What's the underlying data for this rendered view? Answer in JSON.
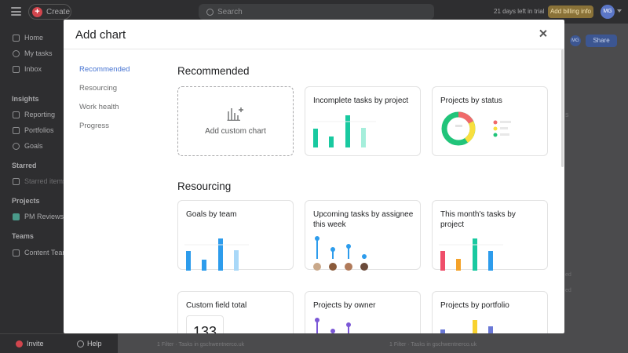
{
  "app": {
    "create_label": "Create",
    "search_placeholder": "Search",
    "trial_text": "21 days left in trial",
    "billing_label": "Add billing info",
    "user_initials": "MG",
    "share_label": "Share"
  },
  "sidebar": {
    "items": [
      {
        "label": "Home",
        "icon": "home-icon"
      },
      {
        "label": "My tasks",
        "icon": "check-circle-icon"
      },
      {
        "label": "Inbox",
        "icon": "bell-icon"
      }
    ],
    "insights_heading": "Insights",
    "insights_items": [
      {
        "label": "Reporting",
        "icon": "trend-icon"
      },
      {
        "label": "Portfolios",
        "icon": "folder-icon"
      },
      {
        "label": "Goals",
        "icon": "person-icon"
      }
    ],
    "starred_heading": "Starred",
    "starred_items": [
      {
        "label": "Starred items",
        "icon": "star-icon"
      }
    ],
    "projects_heading": "Projects",
    "projects_items": [
      {
        "label": "PM Reviews",
        "icon": "project-icon"
      }
    ],
    "teams_heading": "Teams",
    "teams_items": [
      {
        "label": "Content Team",
        "icon": "team-icon"
      }
    ],
    "invite_label": "Invite",
    "help_label": "Help"
  },
  "background": {
    "filter_text_1": "1 Filter · Tasks in gschwentnerco.uk",
    "filter_text_2": "1 Filter · Tasks in gschwentnerco.uk",
    "fragments": [
      "s",
      "ed",
      "ed"
    ]
  },
  "modal": {
    "title": "Add chart",
    "nav": [
      "Recommended",
      "Resourcing",
      "Work health",
      "Progress"
    ],
    "active_nav": "Recommended",
    "sections": [
      {
        "title": "Recommended",
        "cards": [
          {
            "title": "Add custom chart",
            "kind": "custom"
          },
          {
            "title": "Incomplete tasks by project",
            "kind": "bar-teal"
          },
          {
            "title": "Projects by status",
            "kind": "donut"
          }
        ]
      },
      {
        "title": "Resourcing",
        "cards": [
          {
            "title": "Goals by team",
            "kind": "bar-blue"
          },
          {
            "title": "Upcoming tasks by assignee this week",
            "kind": "lollipop"
          },
          {
            "title": "This month's tasks by project",
            "kind": "bar-multi"
          },
          {
            "title": "Custom field total",
            "kind": "number",
            "value": "133"
          },
          {
            "title": "Projects by owner",
            "kind": "lollipop-purple"
          },
          {
            "title": "Projects by portfolio",
            "kind": "bar-portfolio"
          }
        ]
      }
    ]
  },
  "colors": {
    "accent_blue": "#4573d2",
    "teal": "#19c9a0",
    "donut": [
      "#f06a6a",
      "#f8df3e",
      "#21c47a",
      "#e3e3e3"
    ],
    "blue_bars": "#2d9cec",
    "multi_bars": [
      "#ef4e6a",
      "#f4a22a",
      "#19c9a0",
      "#2d9cec"
    ],
    "purple": "#7b58d6",
    "yellow": "#f8d22f"
  }
}
